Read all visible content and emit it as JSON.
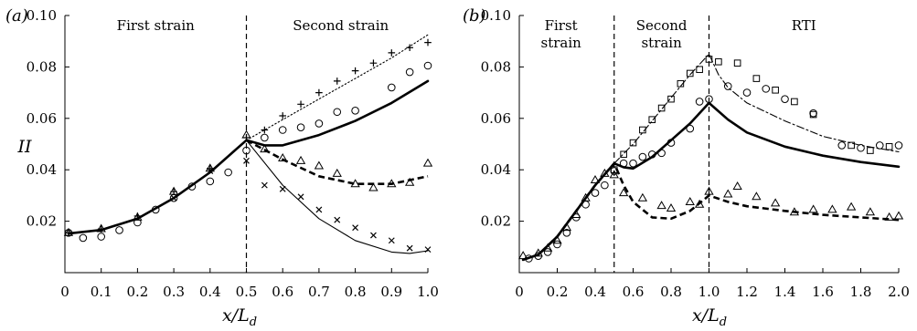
{
  "chart_data": [
    {
      "panel": "(a)",
      "type": "line",
      "xlabel": "x/L_d",
      "ylabel": "II",
      "xlim": [
        0,
        1.0
      ],
      "ylim": [
        0.0,
        0.1
      ],
      "xticks": [
        "0",
        "0.1",
        "0.2",
        "0.3",
        "0.4",
        "0.5",
        "0.6",
        "0.7",
        "0.8",
        "0.9",
        "1.0"
      ],
      "yticks": [
        "0.02",
        "0.04",
        "0.06",
        "0.08",
        "0.10"
      ],
      "vlines": [
        0.5
      ],
      "regions": [
        {
          "label": "First strain",
          "x": 0.25
        },
        {
          "label": "Second strain",
          "x": 0.76
        }
      ],
      "series": [
        {
          "style": "solid-thick",
          "x": [
            0.01,
            0.1,
            0.2,
            0.3,
            0.4,
            0.5,
            0.55,
            0.6,
            0.7,
            0.8,
            0.9,
            1.0
          ],
          "y": [
            0.0152,
            0.0166,
            0.021,
            0.029,
            0.039,
            0.0515,
            0.0495,
            0.0495,
            0.0535,
            0.059,
            0.066,
            0.0745
          ]
        },
        {
          "style": "dashed-thick",
          "x": [
            0.5,
            0.6,
            0.7,
            0.8,
            0.9,
            1.0
          ],
          "y": [
            0.0515,
            0.044,
            0.0375,
            0.0345,
            0.0345,
            0.0375
          ]
        },
        {
          "style": "solid-thin",
          "x": [
            0.5,
            0.6,
            0.7,
            0.8,
            0.9,
            0.95,
            1.0
          ],
          "y": [
            0.0515,
            0.034,
            0.021,
            0.0125,
            0.008,
            0.0075,
            0.0085
          ]
        },
        {
          "style": "dotted",
          "x": [
            0.5,
            0.6,
            0.7,
            0.8,
            0.9,
            1.0
          ],
          "y": [
            0.0515,
            0.0595,
            0.0675,
            0.0755,
            0.0835,
            0.0925
          ]
        },
        {
          "marker": "plus",
          "x": [
            0.01,
            0.1,
            0.2,
            0.3,
            0.4,
            0.5,
            0.55,
            0.6,
            0.65,
            0.7,
            0.75,
            0.8,
            0.85,
            0.9,
            0.95,
            1.0
          ],
          "y": [
            0.0155,
            0.017,
            0.022,
            0.0315,
            0.0405,
            0.0525,
            0.0555,
            0.061,
            0.0655,
            0.07,
            0.0745,
            0.0785,
            0.0815,
            0.0855,
            0.0875,
            0.0895
          ]
        },
        {
          "marker": "circle",
          "x": [
            0.01,
            0.05,
            0.1,
            0.15,
            0.2,
            0.25,
            0.3,
            0.35,
            0.4,
            0.45,
            0.5,
            0.55,
            0.6,
            0.65,
            0.7,
            0.75,
            0.8,
            0.9,
            0.95,
            1.0
          ],
          "y": [
            0.0155,
            0.0135,
            0.014,
            0.0165,
            0.0195,
            0.0245,
            0.029,
            0.0335,
            0.0355,
            0.039,
            0.0475,
            0.0525,
            0.0555,
            0.0565,
            0.058,
            0.0625,
            0.063,
            0.072,
            0.078,
            0.0805
          ]
        },
        {
          "marker": "triangle",
          "x": [
            0.01,
            0.1,
            0.2,
            0.3,
            0.4,
            0.5,
            0.55,
            0.6,
            0.65,
            0.7,
            0.75,
            0.8,
            0.85,
            0.9,
            0.95,
            1.0
          ],
          "y": [
            0.0155,
            0.017,
            0.0215,
            0.0315,
            0.0405,
            0.0535,
            0.048,
            0.0445,
            0.0435,
            0.0415,
            0.0385,
            0.0345,
            0.033,
            0.0345,
            0.035,
            0.0425
          ]
        },
        {
          "marker": "cross",
          "x": [
            0.3,
            0.4,
            0.5,
            0.55,
            0.6,
            0.65,
            0.7,
            0.75,
            0.8,
            0.85,
            0.9,
            0.95,
            1.0
          ],
          "y": [
            0.029,
            0.0395,
            0.0435,
            0.034,
            0.0325,
            0.0295,
            0.0245,
            0.0205,
            0.0175,
            0.0145,
            0.0125,
            0.0095,
            0.009
          ]
        }
      ]
    },
    {
      "panel": "(b)",
      "type": "line",
      "xlabel": "x/L_d",
      "ylabel": "",
      "xlim": [
        0,
        2.0
      ],
      "ylim": [
        0.0,
        0.1
      ],
      "xticks": [
        "0",
        "0.2",
        "0.4",
        "0.6",
        "0.8",
        "1.0",
        "1.2",
        "1.4",
        "1.6",
        "1.8",
        "2.0"
      ],
      "yticks": [
        "0.02",
        "0.04",
        "0.06",
        "0.08",
        "0.10"
      ],
      "vlines": [
        0.5,
        1.0
      ],
      "regions": [
        {
          "label": "First strain",
          "x": 0.22
        },
        {
          "label": "Second strain",
          "x": 0.75
        },
        {
          "label": "RTI",
          "x": 1.5
        }
      ],
      "series": [
        {
          "style": "solid-thick",
          "x": [
            0.02,
            0.1,
            0.2,
            0.3,
            0.4,
            0.5,
            0.55,
            0.6,
            0.7,
            0.8,
            0.9,
            1.0,
            1.1,
            1.2,
            1.4,
            1.6,
            1.8,
            2.0
          ],
          "y": [
            0.005,
            0.007,
            0.014,
            0.024,
            0.034,
            0.0425,
            0.041,
            0.0405,
            0.045,
            0.0515,
            0.058,
            0.066,
            0.0595,
            0.0545,
            0.049,
            0.0455,
            0.043,
            0.0412
          ]
        },
        {
          "style": "dashed-thick",
          "x": [
            0.02,
            0.1,
            0.2,
            0.3,
            0.4,
            0.5,
            0.55,
            0.6,
            0.7,
            0.8,
            0.9,
            1.0,
            1.1,
            1.2,
            1.4,
            1.6,
            1.8,
            2.0
          ],
          "y": [
            0.005,
            0.007,
            0.014,
            0.024,
            0.034,
            0.0425,
            0.034,
            0.0275,
            0.0215,
            0.021,
            0.024,
            0.03,
            0.0275,
            0.0258,
            0.024,
            0.0225,
            0.0215,
            0.0205
          ]
        },
        {
          "style": "dash-dot",
          "x": [
            0.5,
            0.6,
            0.7,
            0.8,
            0.9,
            0.95,
            1.0,
            1.05,
            1.1,
            1.2,
            1.4,
            1.6,
            1.8,
            2.0
          ],
          "y": [
            0.0425,
            0.05,
            0.059,
            0.068,
            0.077,
            0.081,
            0.085,
            0.077,
            0.072,
            0.066,
            0.059,
            0.053,
            0.0495,
            0.047
          ]
        },
        {
          "marker": "square",
          "x": [
            0.5,
            0.55,
            0.6,
            0.65,
            0.7,
            0.75,
            0.8,
            0.85,
            0.9,
            0.95,
            1.0,
            1.05,
            1.15,
            1.25,
            1.35,
            1.45,
            1.55,
            1.75,
            1.85,
            1.95
          ],
          "y": [
            0.04,
            0.046,
            0.0505,
            0.0555,
            0.0595,
            0.064,
            0.0675,
            0.0735,
            0.0775,
            0.079,
            0.083,
            0.082,
            0.0815,
            0.0755,
            0.071,
            0.0665,
            0.0615,
            0.0495,
            0.0475,
            0.049
          ]
        },
        {
          "marker": "circle",
          "x": [
            0.45,
            0.5,
            0.55,
            0.6,
            0.65,
            0.7,
            0.75,
            0.8,
            0.9,
            0.95,
            1.0,
            1.1,
            1.2,
            1.3,
            1.4,
            1.55,
            1.7,
            1.8,
            1.9,
            2.0
          ],
          "y": [
            0.034,
            0.0395,
            0.0425,
            0.0425,
            0.045,
            0.046,
            0.0465,
            0.0505,
            0.056,
            0.0665,
            0.0675,
            0.0725,
            0.07,
            0.0715,
            0.0675,
            0.062,
            0.0495,
            0.0485,
            0.0495,
            0.0495
          ]
        },
        {
          "marker": "triangle",
          "x": [
            0.02,
            0.1,
            0.15,
            0.2,
            0.25,
            0.3,
            0.35,
            0.4,
            0.45,
            0.5,
            0.55,
            0.65,
            0.75,
            0.8,
            0.9,
            0.95,
            1.0,
            1.1,
            1.15,
            1.25,
            1.35,
            1.45,
            1.55,
            1.65,
            1.75,
            1.85,
            1.95,
            2.0
          ],
          "y": [
            0.0065,
            0.0075,
            0.0095,
            0.0125,
            0.0175,
            0.0225,
            0.029,
            0.036,
            0.0385,
            0.038,
            0.031,
            0.029,
            0.026,
            0.025,
            0.0275,
            0.0265,
            0.0315,
            0.0305,
            0.0335,
            0.0295,
            0.027,
            0.0235,
            0.0245,
            0.0245,
            0.0255,
            0.0235,
            0.0215,
            0.022
          ]
        },
        {
          "marker": "circle",
          "x": [
            0.05,
            0.1,
            0.15,
            0.2,
            0.25,
            0.3,
            0.35,
            0.4
          ],
          "y": [
            0.0055,
            0.0065,
            0.008,
            0.011,
            0.0155,
            0.0215,
            0.0265,
            0.031
          ]
        }
      ]
    }
  ]
}
